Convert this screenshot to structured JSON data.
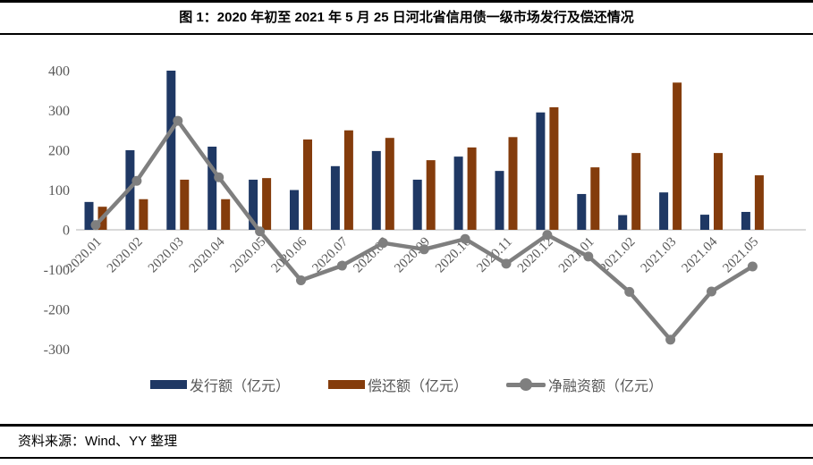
{
  "title": "图 1：2020 年初至 2021 年 5 月 25 日河北省信用债一级市场发行及偿还情况",
  "source": "资料来源：Wind、YY 整理",
  "chart_data": {
    "type": "bar",
    "subtype": "grouped-bars-with-line-overlay",
    "title": "图 1：2020 年初至 2021 年 5 月 25 日河北省信用债一级市场发行及偿还情况",
    "categories": [
      "2020.01",
      "2020.02",
      "2020.03",
      "2020.04",
      "2020.05",
      "2020.06",
      "2020.07",
      "2020.08",
      "2020.09",
      "2020.10",
      "2020.11",
      "2020.12",
      "2021.01",
      "2021.02",
      "2021.03",
      "2021.04",
      "2021.05"
    ],
    "series": [
      {
        "name": "发行额（亿元）",
        "type": "bar",
        "color": "#1f3864",
        "values": [
          70,
          200,
          400,
          209,
          126,
          100,
          160,
          198,
          126,
          184,
          148,
          295,
          90,
          37,
          94,
          38,
          45
        ]
      },
      {
        "name": "偿还额（亿元）",
        "type": "bar",
        "color": "#843c0c",
        "values": [
          58,
          77,
          126,
          77,
          130,
          227,
          250,
          231,
          175,
          207,
          233,
          308,
          157,
          193,
          370,
          193,
          137
        ]
      },
      {
        "name": "净融资额（亿元）",
        "type": "line",
        "color": "#7f7f7f",
        "values": [
          12,
          123,
          274,
          132,
          -4,
          -127,
          -90,
          -33,
          -49,
          -23,
          -85,
          -13,
          -67,
          -156,
          -276,
          -155,
          -92
        ]
      }
    ],
    "xlabel": "",
    "ylabel": "",
    "ylim": [
      -300,
      400
    ],
    "yticks": [
      400,
      300,
      200,
      100,
      0,
      -100,
      -200,
      -300
    ],
    "grid": false,
    "legend_position": "bottom",
    "axis_line_color": "#d9d9d9",
    "tick_label_color": "#595959"
  }
}
